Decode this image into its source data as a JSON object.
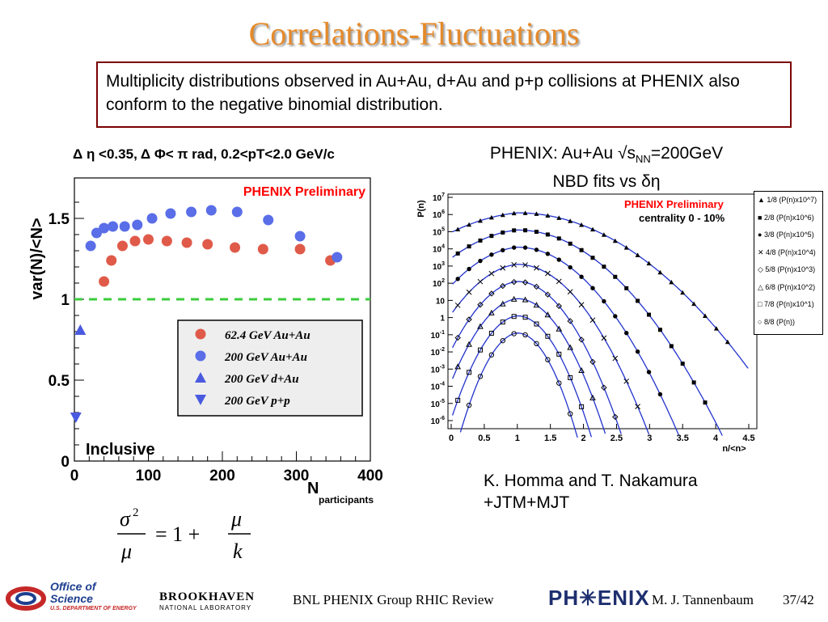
{
  "slide": {
    "title": "Correlations-Fluctuations",
    "description": "Multiplicity distributions observed in Au+Au, d+Au and p+p collisions at PHENIX also conform to the negative binomial distribution.",
    "credit_line1": "K. Homma and T. Nakamura",
    "credit_line2": "+JTM+MJT",
    "formula": "σ²/μ = 1 + μ/k"
  },
  "footer": {
    "office_line1": "Office of",
    "office_line2": "Science",
    "office_line3": "U.S. DEPARTMENT OF ENERGY",
    "bnl_line1": "BROOKHAVEN",
    "bnl_line2": "NATIONAL LABORATORY",
    "center_text": "BNL PHENIX Group  RHIC Review",
    "phenix_logo": "PH✳ENIX",
    "author": "M. J. Tannenbaum",
    "page": "37/42"
  },
  "colors": {
    "title": "#e58a2a",
    "box_border": "#7a0000",
    "auau62": "#e05a4a",
    "auau200": "#5a6ee8",
    "dau": "#4a5ae0",
    "pp": "#4a5ae0",
    "fit_line": "#2233cc",
    "preliminary": "#ff0000",
    "dashed_line": "#3ccc3c"
  },
  "chart_data": [
    {
      "type": "scatter",
      "title": "Δ η <0.35, Δ Φ< π rad, 0.2<pT<2.0 GeV/c",
      "xlabel": "Nparticipants",
      "ylabel": "var(N)/<N>",
      "xlim": [
        0,
        400
      ],
      "ylim": [
        0,
        1.75
      ],
      "xticks": [
        0,
        100,
        200,
        300,
        400
      ],
      "yticks": [
        0,
        0.5,
        1,
        1.5
      ],
      "annotations": [
        "PHENIX Preliminary",
        "Inclusive"
      ],
      "reference_line": 1.0,
      "legend_position": "bottom-right",
      "series": [
        {
          "name": "62.4 GeV Au+Au",
          "marker": "circle",
          "color": "#e05a4a",
          "x": [
            40,
            50,
            65,
            82,
            100,
            125,
            152,
            180,
            217,
            255,
            305,
            346
          ],
          "y": [
            1.11,
            1.24,
            1.33,
            1.36,
            1.37,
            1.36,
            1.35,
            1.34,
            1.32,
            1.31,
            1.31,
            1.24
          ]
        },
        {
          "name": "200 GeV Au+Au",
          "marker": "circle",
          "color": "#5a6ee8",
          "x": [
            22,
            30,
            40,
            52,
            68,
            85,
            105,
            130,
            158,
            185,
            220,
            262,
            305,
            355
          ],
          "y": [
            1.33,
            1.41,
            1.44,
            1.45,
            1.45,
            1.46,
            1.5,
            1.53,
            1.54,
            1.55,
            1.54,
            1.49,
            1.39,
            1.26
          ]
        },
        {
          "name": "200 GeV d+Au",
          "marker": "triangle-up",
          "color": "#4a5ae0",
          "x": [
            8
          ],
          "y": [
            0.81
          ]
        },
        {
          "name": "200 GeV p+p",
          "marker": "triangle-down",
          "color": "#4a5ae0",
          "x": [
            2
          ],
          "y": [
            0.27
          ]
        }
      ]
    },
    {
      "type": "line",
      "title": "PHENIX: Au+Au √sNN=200GeV NBD fits vs δη",
      "xlabel": "n/<n>",
      "ylabel": "P(n)",
      "yscale": "log",
      "xlim": [
        0,
        4.5
      ],
      "ylim": [
        -6,
        7
      ],
      "xticks": [
        "0",
        "0.5",
        "1",
        "1.5",
        "2",
        "2.5",
        "3",
        "3.5",
        "4",
        "4.5"
      ],
      "yticks": [
        "10^7",
        "10^6",
        "10^5",
        "10^4",
        "10^3",
        "10^2",
        "10",
        "1",
        "10^-1",
        "10^-2",
        "10^-3",
        "10^-4",
        "10^-5",
        "10^-6"
      ],
      "annotations": [
        "PHENIX Preliminary",
        "centrality  0 - 10%"
      ],
      "legend_position": "right",
      "series": [
        {
          "name": "1/8 (P(n)x10^7)",
          "marker": "triangle-up-filled",
          "log_peak": 6.1,
          "width": 1.1
        },
        {
          "name": "2/8 (P(n)x10^6)",
          "marker": "square-filled",
          "log_peak": 5.1,
          "width": 0.85
        },
        {
          "name": "3/8 (P(n)x10^5)",
          "marker": "circle-filled",
          "log_peak": 4.1,
          "width": 0.7
        },
        {
          "name": "4/8 (P(n)x10^4)",
          "marker": "cross",
          "log_peak": 3.1,
          "width": 0.6
        },
        {
          "name": "5/8 (P(n)x10^3)",
          "marker": "diamond-open",
          "log_peak": 2.1,
          "width": 0.5
        },
        {
          "name": "6/8 (P(n)x10^2)",
          "marker": "triangle-up-open",
          "log_peak": 1.1,
          "width": 0.45
        },
        {
          "name": "7/8 (P(n)x10^1)",
          "marker": "square-open",
          "log_peak": 0.1,
          "width": 0.4
        },
        {
          "name": "8/8 (P(n))",
          "marker": "circle-open",
          "log_peak": -0.9,
          "width": 0.35
        }
      ]
    }
  ]
}
